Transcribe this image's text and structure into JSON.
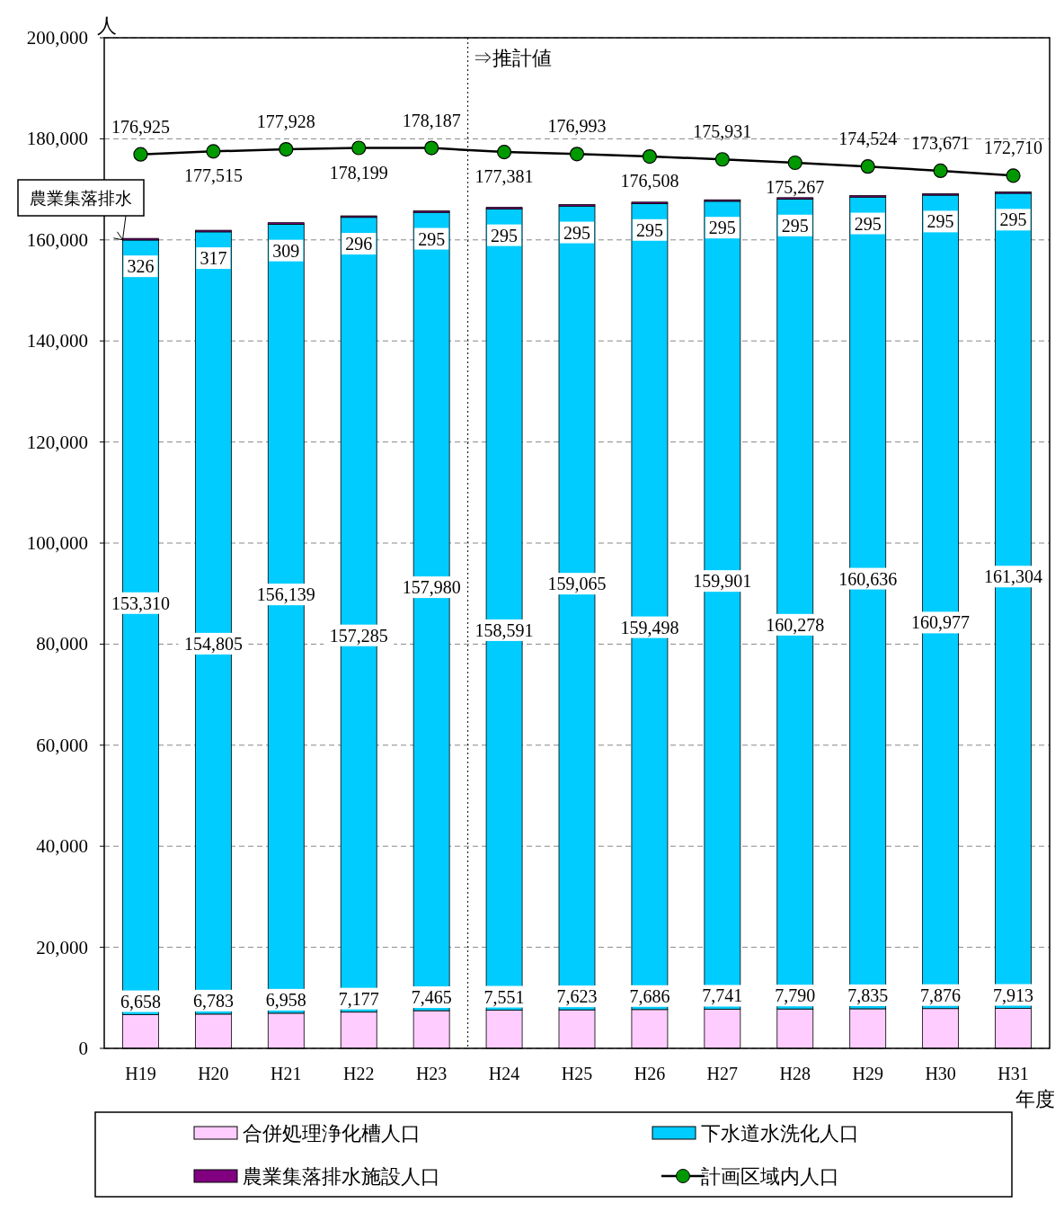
{
  "chart_data": {
    "type": "bar",
    "stacked": true,
    "ylabel": "人",
    "xlabel": "年度",
    "categories": [
      "H19",
      "H20",
      "H21",
      "H22",
      "H23",
      "H24",
      "H25",
      "H26",
      "H27",
      "H28",
      "H29",
      "H30",
      "H31"
    ],
    "ylim": [
      0,
      200000
    ],
    "yticks": [
      0,
      {
        "value": 20000,
        "label": "20,000"
      },
      {
        "value": 40000,
        "label": "40,000"
      },
      {
        "value": 60000,
        "label": "60,000"
      },
      {
        "value": 80000,
        "label": "80,000"
      },
      {
        "value": 100000,
        "label": "100,000"
      },
      {
        "value": 120000,
        "label": "120,000"
      },
      {
        "value": 140000,
        "label": "140,000"
      },
      {
        "value": 160000,
        "label": "160,000"
      },
      {
        "value": 180000,
        "label": "180,000"
      },
      {
        "value": 200000,
        "label": "200,000"
      }
    ],
    "grid": "y",
    "legend": "bottom",
    "series": [
      {
        "name": "合併処理浄化槽人口",
        "color": "#ffccff",
        "values": [
          6658,
          6783,
          6958,
          7177,
          7465,
          7551,
          7623,
          7686,
          7741,
          7790,
          7835,
          7876,
          7913
        ],
        "value_labels": [
          "6,658",
          "6,783",
          "6,958",
          "7,177",
          "7,465",
          "7,551",
          "7,623",
          "7,686",
          "7,741",
          "7,790",
          "7,835",
          "7,876",
          "7,913"
        ]
      },
      {
        "name": "下水道水洗化人口",
        "color": "#00ccff",
        "values": [
          153310,
          154805,
          156139,
          157285,
          157980,
          158591,
          159065,
          159498,
          159901,
          160278,
          160636,
          160977,
          161304
        ],
        "value_labels": [
          "153,310",
          "154,805",
          "156,139",
          "157,285",
          "157,980",
          "158,591",
          "159,065",
          "159,498",
          "159,901",
          "160,278",
          "160,636",
          "160,977",
          "161,304"
        ]
      },
      {
        "name": "農業集落排水施設人口",
        "color": "#800080",
        "values": [
          326,
          317,
          309,
          296,
          295,
          295,
          295,
          295,
          295,
          295,
          295,
          295,
          295
        ],
        "value_labels": [
          "326",
          "317",
          "309",
          "296",
          "295",
          "295",
          "295",
          "295",
          "295",
          "295",
          "295",
          "295",
          "295"
        ]
      },
      {
        "name": "計画区域内人口",
        "type": "line",
        "color": "#009900",
        "marker": "circle",
        "values": [
          176925,
          177515,
          177928,
          178199,
          178187,
          177381,
          176993,
          176508,
          175931,
          175267,
          174524,
          173671,
          172710
        ],
        "value_labels": [
          "176,925",
          "177,515",
          "177,928",
          "178,199",
          "178,187",
          "177,381",
          "176,993",
          "176,508",
          "175,931",
          "175,267",
          "174,524",
          "173,671",
          "172,710"
        ]
      }
    ],
    "ref_lines": [
      {
        "axis": "x",
        "value": "H24",
        "label": "⇒推計値",
        "line_style": "dotted"
      }
    ],
    "annotations": [
      {
        "text": "農業集落排水",
        "x": "H19",
        "y": 160000
      }
    ]
  }
}
